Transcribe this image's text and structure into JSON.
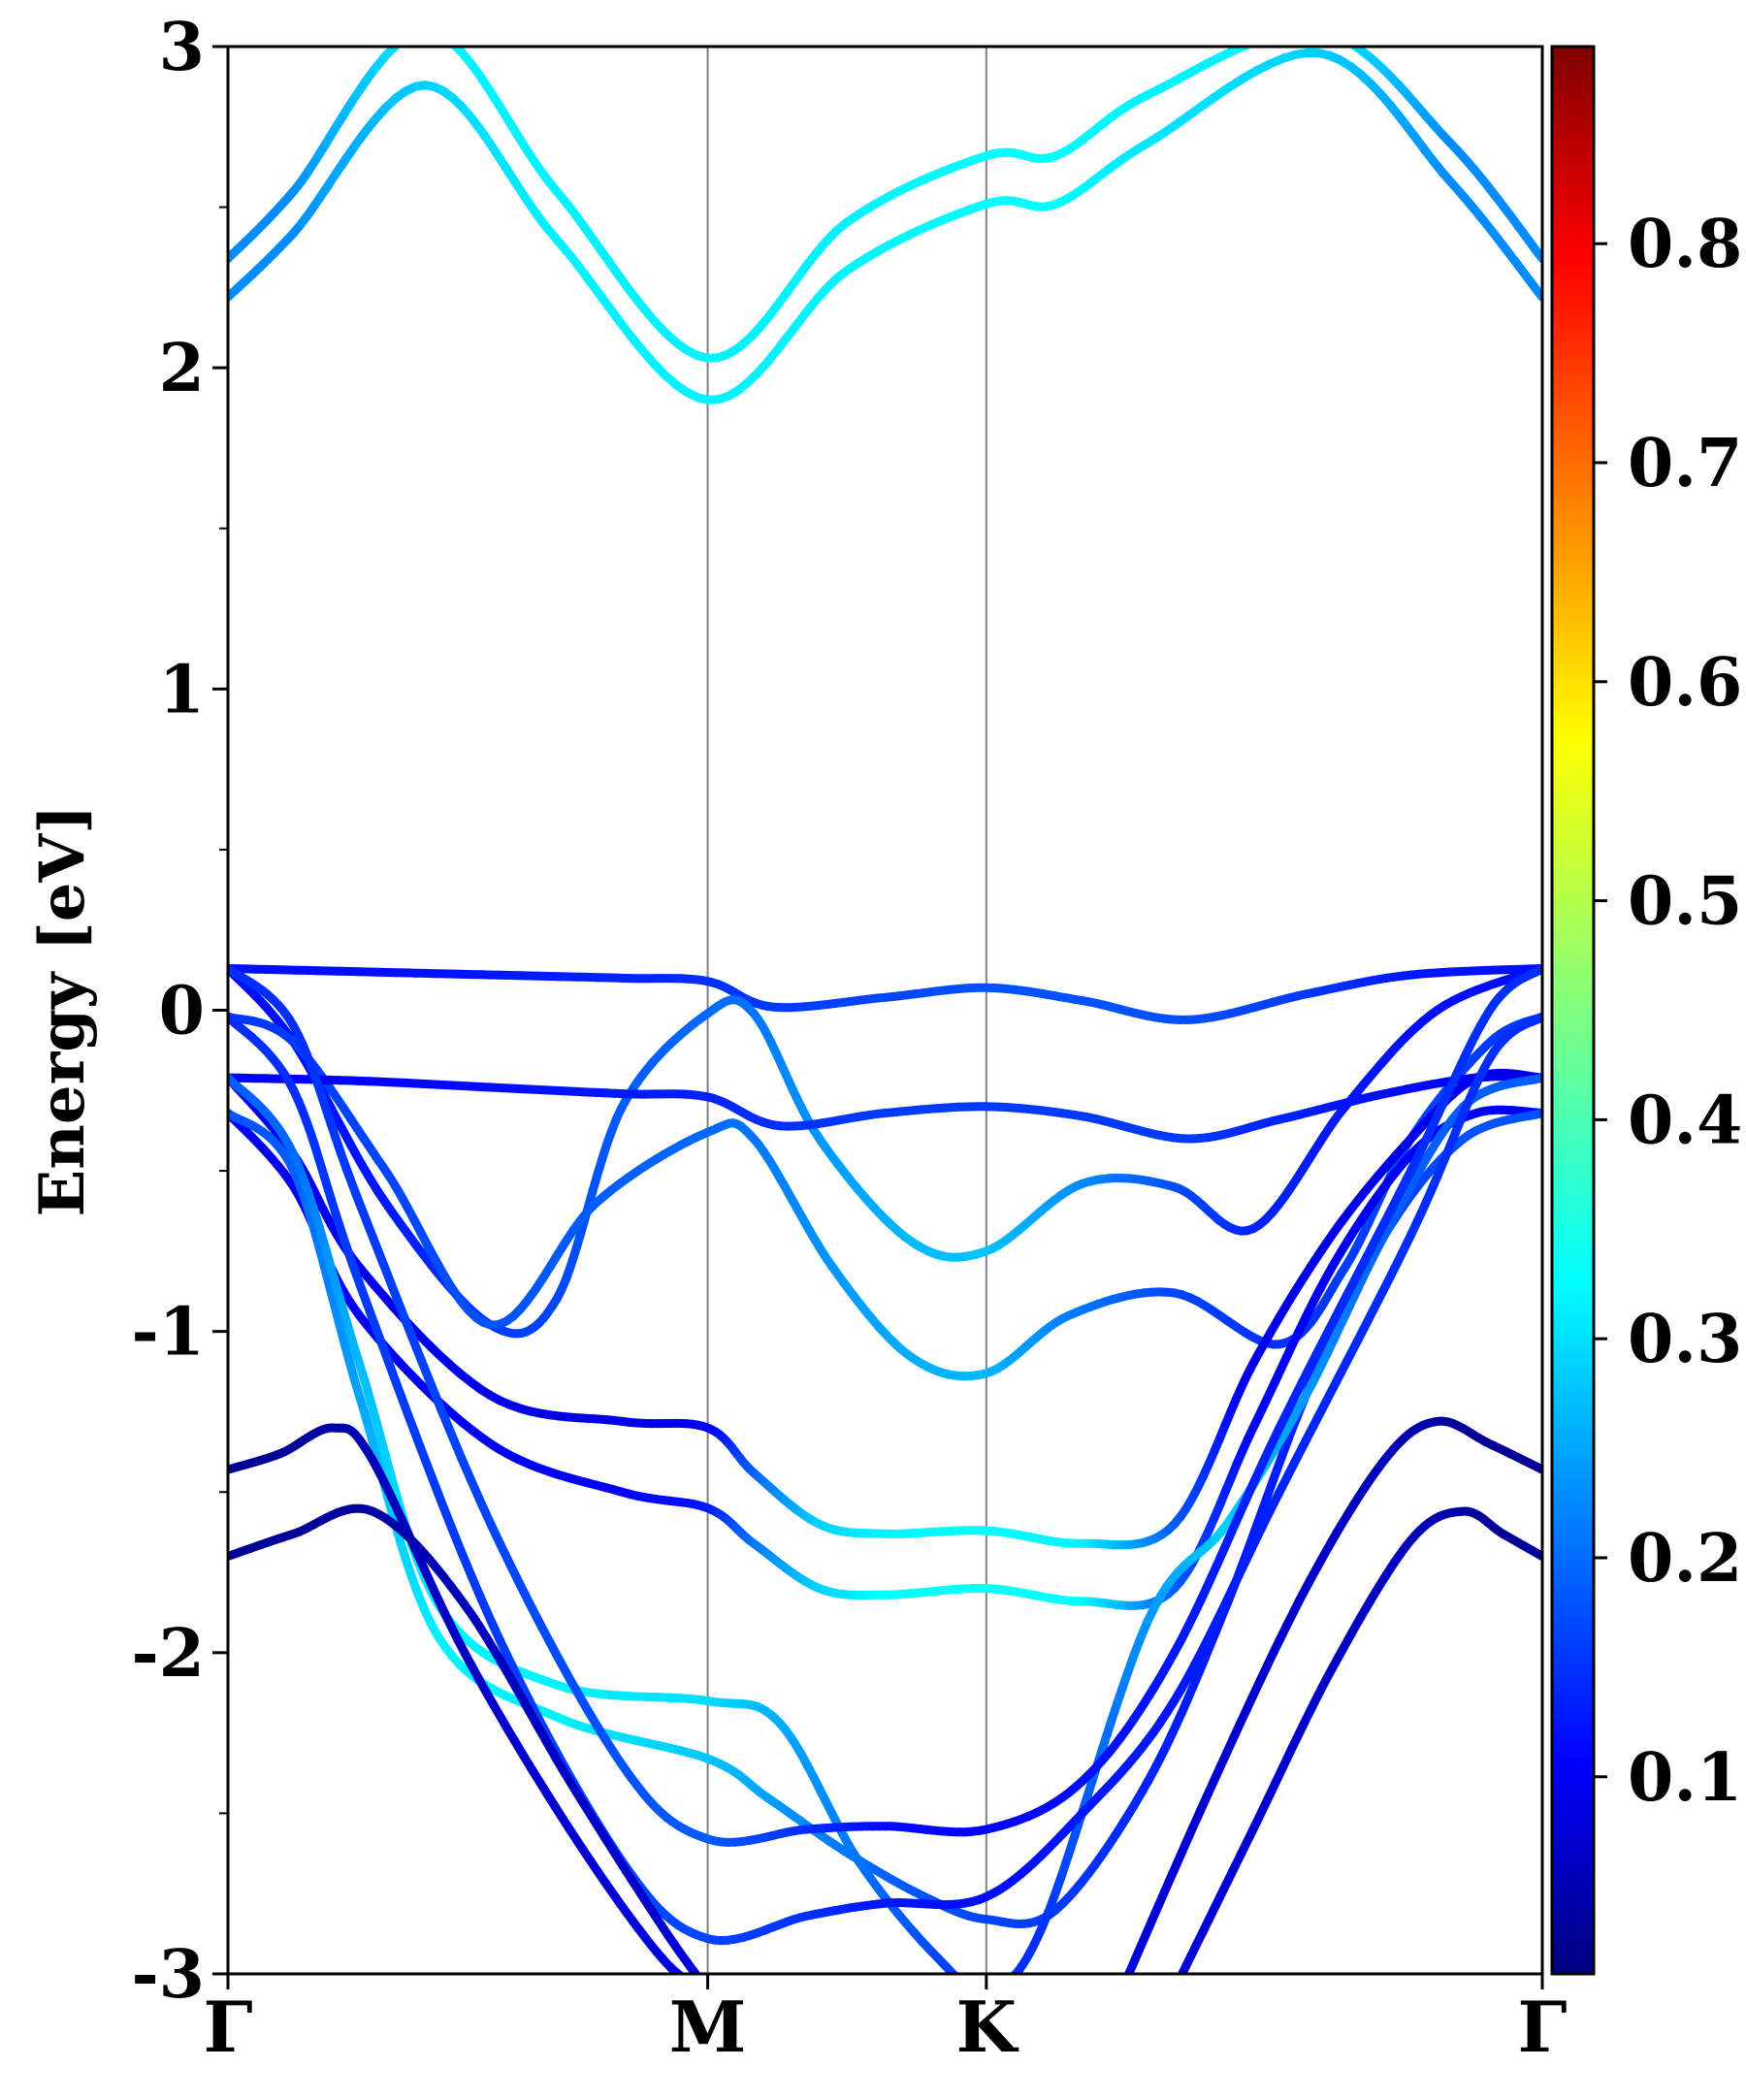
{
  "chart_data": {
    "type": "line",
    "xlabel": "",
    "ylabel": "Energy [eV]",
    "ylim": [
      -3,
      3
    ],
    "yticks": [
      -3,
      -2,
      -1,
      0,
      1,
      2,
      3
    ],
    "ytick_labels": [
      "-3",
      "-2",
      "-1",
      "0",
      "1",
      "2",
      "3"
    ],
    "y_minor_step": 0.5,
    "x_points": [
      {
        "label": "Γ",
        "x": 0.0
      },
      {
        "label": "M",
        "x": 0.365
      },
      {
        "label": "K",
        "x": 0.577
      },
      {
        "label": "Γ",
        "x": 1.0
      }
    ],
    "color_map": "jet",
    "colorbar": {
      "range": [
        0.01,
        0.89
      ],
      "ticks": [
        0.1,
        0.2,
        0.3,
        0.4,
        0.5,
        0.6,
        0.7,
        0.8
      ],
      "tick_labels": [
        "0.1",
        "0.2",
        "0.3",
        "0.4",
        "0.5",
        "0.6",
        "0.7",
        "0.8"
      ]
    },
    "grid": false,
    "legend": "none",
    "bands": [
      {
        "x": [
          0,
          0.05,
          0.15,
          0.25,
          0.365,
          0.47,
          0.577,
          0.63,
          0.7,
          0.83,
          0.93,
          1.0
        ],
        "y": [
          2.34,
          2.55,
          3.05,
          2.55,
          2.03,
          2.45,
          2.66,
          2.66,
          2.85,
          3.05,
          2.7,
          2.34
        ],
        "c": [
          0.24,
          0.24,
          0.33,
          0.33,
          0.33,
          0.33,
          0.34,
          0.34,
          0.33,
          0.33,
          0.24,
          0.24
        ]
      },
      {
        "x": [
          0,
          0.05,
          0.15,
          0.25,
          0.365,
          0.47,
          0.577,
          0.63,
          0.7,
          0.83,
          0.93,
          1.0
        ],
        "y": [
          2.22,
          2.42,
          2.88,
          2.4,
          1.9,
          2.3,
          2.51,
          2.51,
          2.7,
          2.98,
          2.58,
          2.22
        ],
        "c": [
          0.24,
          0.24,
          0.3,
          0.33,
          0.33,
          0.33,
          0.34,
          0.34,
          0.32,
          0.3,
          0.24,
          0.24
        ]
      },
      {
        "x": [
          0,
          0.1,
          0.2,
          0.3,
          0.365,
          0.415,
          0.5,
          0.577,
          0.65,
          0.73,
          0.82,
          0.9,
          1.0
        ],
        "y": [
          0.13,
          0.12,
          0.11,
          0.1,
          0.09,
          0.01,
          0.04,
          0.07,
          0.03,
          -0.03,
          0.05,
          0.11,
          0.13
        ],
        "c": [
          0.13,
          0.13,
          0.14,
          0.15,
          0.16,
          0.17,
          0.18,
          0.19,
          0.19,
          0.19,
          0.17,
          0.14,
          0.13
        ]
      },
      {
        "x": [
          0,
          0.05,
          0.12,
          0.2,
          0.25,
          0.3,
          0.365,
          0.4,
          0.45,
          0.52,
          0.577,
          0.65,
          0.72,
          0.78,
          0.85,
          0.92,
          1.0
        ],
        "y": [
          0.13,
          -0.1,
          -0.6,
          -0.98,
          -0.9,
          -0.3,
          -0.01,
          -0.01,
          -0.4,
          -0.72,
          -0.75,
          -0.54,
          -0.55,
          -0.68,
          -0.3,
          0.0,
          0.13
        ],
        "c": [
          0.13,
          0.13,
          0.14,
          0.17,
          0.18,
          0.2,
          0.21,
          0.22,
          0.25,
          0.28,
          0.29,
          0.24,
          0.19,
          0.15,
          0.14,
          0.13,
          0.13
        ]
      },
      {
        "x": [
          0,
          0.05,
          0.12,
          0.2,
          0.28,
          0.365,
          0.4,
          0.46,
          0.52,
          0.577,
          0.64,
          0.72,
          0.8,
          0.85,
          0.9,
          0.96,
          1.0
        ],
        "y": [
          -0.02,
          -0.1,
          -0.5,
          -0.98,
          -0.6,
          -0.38,
          -0.4,
          -0.8,
          -1.08,
          -1.13,
          -0.95,
          -0.88,
          -1.04,
          -0.8,
          -0.4,
          -0.1,
          -0.02
        ],
        "c": [
          0.17,
          0.17,
          0.18,
          0.19,
          0.2,
          0.21,
          0.22,
          0.25,
          0.27,
          0.28,
          0.23,
          0.18,
          0.16,
          0.17,
          0.18,
          0.17,
          0.17
        ]
      },
      {
        "x": [
          0,
          0.1,
          0.2,
          0.3,
          0.365,
          0.42,
          0.5,
          0.577,
          0.65,
          0.73,
          0.8,
          0.88,
          0.95,
          1.0
        ],
        "y": [
          -0.21,
          -0.22,
          -0.24,
          -0.26,
          -0.27,
          -0.36,
          -0.32,
          -0.3,
          -0.33,
          -0.4,
          -0.34,
          -0.26,
          -0.21,
          -0.21
        ],
        "c": [
          0.12,
          0.12,
          0.13,
          0.14,
          0.15,
          0.16,
          0.17,
          0.17,
          0.17,
          0.17,
          0.15,
          0.13,
          0.12,
          0.12
        ]
      },
      {
        "x": [
          0,
          0.05,
          0.1,
          0.2,
          0.3,
          0.365,
          0.4,
          0.45,
          0.5,
          0.577,
          0.65,
          0.72,
          0.78,
          0.84,
          0.9,
          0.95,
          1.0
        ],
        "y": [
          -0.21,
          -0.45,
          -0.8,
          -1.2,
          -1.28,
          -1.3,
          -1.44,
          -1.6,
          -1.63,
          -1.62,
          -1.66,
          -1.6,
          -1.1,
          -0.7,
          -0.4,
          -0.21,
          -0.21
        ],
        "c": [
          0.1,
          0.1,
          0.1,
          0.1,
          0.1,
          0.11,
          0.2,
          0.3,
          0.33,
          0.34,
          0.33,
          0.2,
          0.1,
          0.1,
          0.1,
          0.1,
          0.1
        ]
      },
      {
        "x": [
          0,
          0.05,
          0.1,
          0.2,
          0.3,
          0.365,
          0.4,
          0.45,
          0.5,
          0.577,
          0.65,
          0.72,
          0.78,
          0.84,
          0.9,
          0.95,
          1.0
        ],
        "y": [
          -0.32,
          -0.55,
          -0.95,
          -1.35,
          -1.5,
          -1.55,
          -1.66,
          -1.8,
          -1.82,
          -1.8,
          -1.84,
          -1.8,
          -1.3,
          -0.8,
          -0.45,
          -0.32,
          -0.32
        ],
        "c": [
          0.11,
          0.11,
          0.11,
          0.11,
          0.12,
          0.14,
          0.22,
          0.3,
          0.34,
          0.35,
          0.34,
          0.2,
          0.12,
          0.11,
          0.11,
          0.11,
          0.11
        ]
      },
      {
        "x": [
          0,
          0.05,
          0.1,
          0.16,
          0.25,
          0.365,
          0.41,
          0.47,
          0.53,
          0.577,
          0.63,
          0.7,
          0.76,
          0.82,
          0.88,
          0.94,
          1.0
        ],
        "y": [
          -0.32,
          -0.5,
          -1.2,
          -1.95,
          -2.2,
          -2.33,
          -2.45,
          -2.62,
          -2.76,
          -2.83,
          -2.8,
          -2.4,
          -1.85,
          -1.2,
          -0.7,
          -0.4,
          -0.32
        ],
        "c": [
          0.19,
          0.2,
          0.26,
          0.33,
          0.33,
          0.29,
          0.26,
          0.22,
          0.19,
          0.18,
          0.17,
          0.15,
          0.14,
          0.15,
          0.17,
          0.19,
          0.19
        ]
      },
      {
        "x": [
          0,
          0.05,
          0.1,
          0.16,
          0.25,
          0.365,
          0.42,
          0.48,
          0.54,
          0.577,
          0.62,
          0.7,
          0.76,
          0.82,
          0.88,
          0.94,
          1.0
        ],
        "y": [
          -0.21,
          -0.45,
          -1.1,
          -1.85,
          -2.1,
          -2.15,
          -2.22,
          -2.65,
          -2.95,
          -3.05,
          -2.85,
          -1.9,
          -1.6,
          -1.2,
          -0.7,
          -0.3,
          -0.21
        ],
        "c": [
          0.2,
          0.21,
          0.28,
          0.33,
          0.33,
          0.31,
          0.27,
          0.22,
          0.18,
          0.16,
          0.16,
          0.25,
          0.3,
          0.25,
          0.2,
          0.2,
          0.2
        ]
      },
      {
        "x": [
          0,
          0.05,
          0.1,
          0.2,
          0.3,
          0.365,
          0.44,
          0.5,
          0.577,
          0.65,
          0.72,
          0.8,
          0.9,
          0.96,
          1.0
        ],
        "y": [
          0.13,
          -0.05,
          -0.6,
          -1.6,
          -2.35,
          -2.58,
          -2.55,
          -2.54,
          -2.55,
          -2.4,
          -2.0,
          -1.3,
          -0.5,
          0.0,
          0.13
        ],
        "c": [
          0.16,
          0.16,
          0.17,
          0.18,
          0.19,
          0.2,
          0.16,
          0.13,
          0.12,
          0.13,
          0.14,
          0.15,
          0.16,
          0.16,
          0.16
        ]
      },
      {
        "x": [
          0,
          0.05,
          0.1,
          0.2,
          0.3,
          0.365,
          0.44,
          0.5,
          0.577,
          0.65,
          0.72,
          0.8,
          0.9,
          0.96,
          1.0
        ],
        "y": [
          -0.02,
          -0.25,
          -0.85,
          -1.9,
          -2.65,
          -2.89,
          -2.82,
          -2.78,
          -2.76,
          -2.5,
          -2.15,
          -1.5,
          -0.7,
          -0.15,
          -0.02
        ],
        "c": [
          0.16,
          0.16,
          0.17,
          0.17,
          0.18,
          0.18,
          0.16,
          0.14,
          0.13,
          0.14,
          0.14,
          0.15,
          0.16,
          0.16,
          0.16
        ]
      },
      {
        "x": [
          0,
          0.04,
          0.08,
          0.11,
          0.18,
          0.26,
          0.33,
          0.365
        ],
        "y": [
          -1.43,
          -1.38,
          -1.3,
          -1.4,
          -2.0,
          -2.55,
          -2.95,
          -3.05
        ],
        "c": [
          0.03,
          0.03,
          0.04,
          0.06,
          0.07,
          0.08,
          0.09,
          0.09
        ]
      },
      {
        "x": [
          0,
          0.05,
          0.11,
          0.18,
          0.26,
          0.33,
          0.365
        ],
        "y": [
          -1.7,
          -1.63,
          -1.56,
          -1.85,
          -2.4,
          -2.85,
          -3.05
        ],
        "c": [
          0.03,
          0.03,
          0.04,
          0.06,
          0.07,
          0.08,
          0.09
        ]
      },
      {
        "x": [
          0.68,
          0.75,
          0.82,
          0.88,
          0.92,
          0.96,
          1.0
        ],
        "y": [
          -3.05,
          -2.4,
          -1.8,
          -1.4,
          -1.28,
          -1.35,
          -1.43
        ],
        "c": [
          0.09,
          0.08,
          0.07,
          0.06,
          0.04,
          0.03,
          0.03
        ]
      },
      {
        "x": [
          0.72,
          0.78,
          0.84,
          0.9,
          0.94,
          0.97,
          1.0
        ],
        "y": [
          -3.05,
          -2.55,
          -2.05,
          -1.65,
          -1.56,
          -1.63,
          -1.7
        ],
        "c": [
          0.09,
          0.08,
          0.07,
          0.06,
          0.04,
          0.03,
          0.03
        ]
      }
    ]
  }
}
